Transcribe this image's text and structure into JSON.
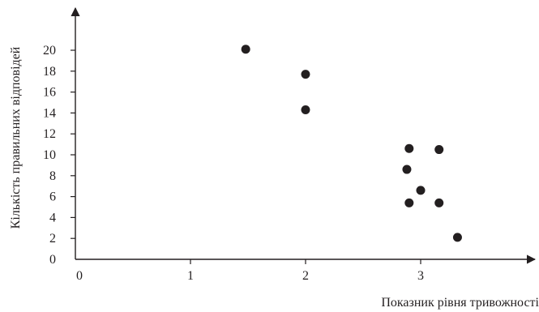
{
  "chart_data": {
    "type": "scatter",
    "xlabel": "Показник рівня тривожності",
    "ylabel": "Кількість правильних відповідей",
    "xlim": [
      0,
      3.8
    ],
    "ylim": [
      0,
      23
    ],
    "x_ticks": [
      0,
      1,
      2,
      3
    ],
    "y_ticks": [
      0,
      2,
      4,
      6,
      8,
      10,
      12,
      14,
      16,
      18,
      20
    ],
    "grid": false,
    "colors": {
      "marks": "#231f20",
      "axes": "#231f20"
    },
    "points": [
      {
        "x": 1.48,
        "y": 20.1
      },
      {
        "x": 2.0,
        "y": 17.7
      },
      {
        "x": 2.0,
        "y": 14.3
      },
      {
        "x": 2.9,
        "y": 10.6
      },
      {
        "x": 3.16,
        "y": 10.5
      },
      {
        "x": 2.88,
        "y": 8.6
      },
      {
        "x": 3.0,
        "y": 6.6
      },
      {
        "x": 2.9,
        "y": 5.4
      },
      {
        "x": 3.16,
        "y": 5.4
      },
      {
        "x": 3.32,
        "y": 2.1
      }
    ]
  }
}
